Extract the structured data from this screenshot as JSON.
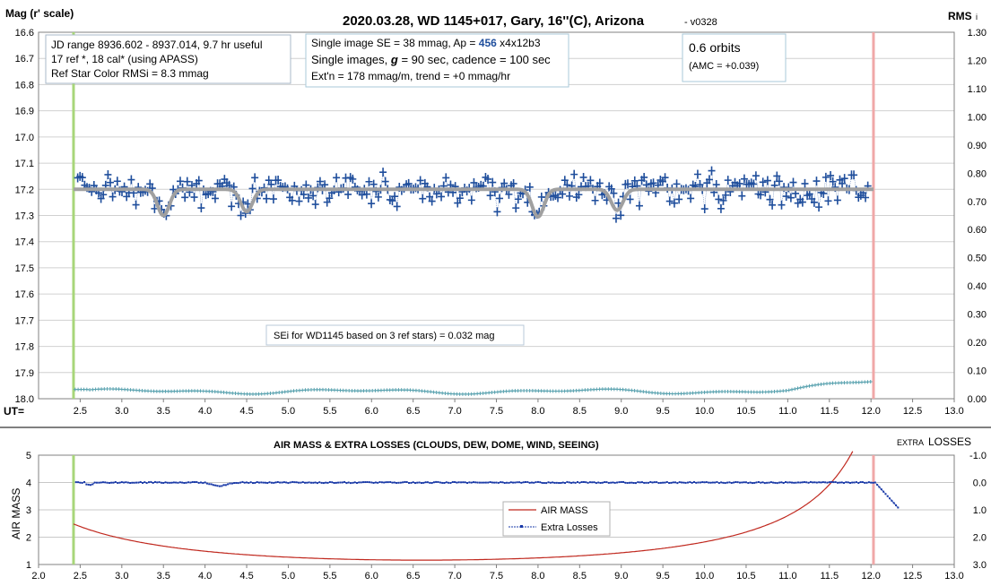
{
  "chart_data": [
    {
      "type": "scatter",
      "title": "2020.03.28, WD 1145+017, Gary, 16''(C), Arizona",
      "version": "- v0328",
      "ylabel": "Mag (r' scale)",
      "y2label": "RMS",
      "y2label_sub": "i",
      "xlabel": "UT=",
      "xlim": [
        2.0,
        13.0
      ],
      "ylim": [
        16.6,
        18.0
      ],
      "y2lim": [
        0.0,
        1.3
      ],
      "x_ticks": [
        "2.5",
        "3.0",
        "3.5",
        "4.0",
        "4.5",
        "5.0",
        "5.5",
        "6.0",
        "6.5",
        "7.0",
        "7.5",
        "8.0",
        "8.5",
        "9.0",
        "9.5",
        "10.0",
        "10.5",
        "11.0",
        "11.5",
        "12.0",
        "12.5",
        "13.0"
      ],
      "y_ticks": [
        "16.6",
        "16.7",
        "16.8",
        "16.9",
        "17.0",
        "17.1",
        "17.2",
        "17.3",
        "17.4",
        "17.5",
        "17.6",
        "17.7",
        "17.8",
        "17.9",
        "18.0"
      ],
      "y2_ticks": [
        "1.30",
        "1.20",
        "1.10",
        "1.00",
        "0.90",
        "0.80",
        "0.70",
        "0.60",
        "0.50",
        "0.40",
        "0.30",
        "0.20",
        "0.10",
        "0.00"
      ],
      "info_box_1": {
        "line1": "JD range 8936.602 - 8937.014, 9.7 hr useful",
        "line2": "17 ref *, 18 cal* (using APASS)",
        "line3": "Ref Star Color RMSi = 8.3 mmag"
      },
      "info_box_2": {
        "line1_a": "Single image SE = 38 mmag, Ap = ",
        "line1_b": "456",
        "line1_c": " x4x12b3",
        "line2_a": "Single images, ",
        "line2_b": "g",
        "line2_c": " = 90 sec, cadence = 100 sec",
        "line3": "Ext'n = 178 mmag/m, trend = +0 mmag/hr"
      },
      "info_box_3": {
        "line1": "0.6 orbits",
        "line2": "(AMC = +0.039)"
      },
      "sei_note": "SEi for WD1145 based on 3 ref stars) = 0.032 mag",
      "vertical_markers": {
        "start_ut": 2.42,
        "end_ut": 12.03
      },
      "model": {
        "baseline": 17.2,
        "start": 2.42,
        "end": 12.03,
        "dips": [
          {
            "ut": 3.5,
            "depth": 0.1
          },
          {
            "ut": 4.5,
            "depth": 0.085
          },
          {
            "ut": 8.0,
            "depth": 0.105
          },
          {
            "ut": 8.95,
            "depth": 0.08
          }
        ]
      },
      "magnitudes": {
        "start": 2.47,
        "step": 0.028,
        "scatter": 0.038
      },
      "rms_series": {
        "start": 2.44,
        "end": 12.0,
        "base": 0.033,
        "mid": 0.026,
        "end_value": 0.082
      },
      "colors": {
        "points": "#1f4e9c",
        "model": "#a0a0a0",
        "rms": "#5ba3b0",
        "start_line": "#a8d67a",
        "end_line": "#f0a8a8"
      }
    },
    {
      "type": "line",
      "title": "AIR MASS & EXTRA LOSSES (CLOUDS, DEW, DOME, WIND, SEEING)",
      "ylabel": "AIR MASS",
      "y2label_small": "EXTRA",
      "y2label": "LOSSES",
      "xlim": [
        2.0,
        13.0
      ],
      "ylim": [
        1,
        5
      ],
      "y2lim": [
        -1.0,
        3.0
      ],
      "x_ticks": [
        "2.0",
        "2.5",
        "3.0",
        "3.5",
        "4.0",
        "4.5",
        "5.0",
        "5.5",
        "6.0",
        "6.5",
        "7.0",
        "7.5",
        "8.0",
        "8.5",
        "9.0",
        "9.5",
        "10.0",
        "10.5",
        "11.0",
        "11.5",
        "12.0",
        "12.5",
        "13.0"
      ],
      "y_ticks": [
        "5",
        "4",
        "3",
        "2",
        "1"
      ],
      "y2_ticks": [
        "-1.0",
        "0.0",
        "1.0",
        "2.0",
        "3.0"
      ],
      "series": [
        {
          "name": "AIR MASS",
          "color": "#c0281e",
          "transit_ut": 6.6,
          "min_airmass": 1.16
        },
        {
          "name": "Extra Losses",
          "color": "#1a3aa8",
          "end_ut": 12.35,
          "end_value": 1.0
        }
      ]
    }
  ]
}
